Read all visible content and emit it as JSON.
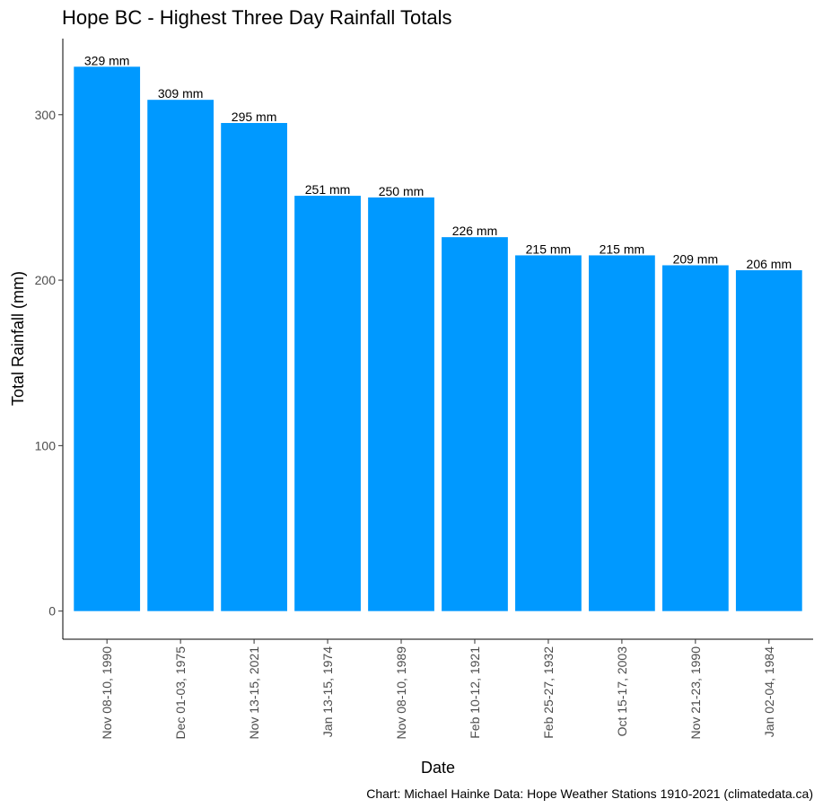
{
  "chart_data": {
    "type": "bar",
    "title": "Hope BC - Highest Three Day Rainfall Totals",
    "xlabel": "Date",
    "ylabel": "Total Rainfall (mm)",
    "caption": "Chart: Michael Hainke  Data: Hope Weather Stations 1910-2021 (climatedata.ca)",
    "categories": [
      "Nov 08-10, 1990",
      "Dec 01-03, 1975",
      "Nov 13-15, 2021",
      "Jan 13-15, 1974",
      "Nov 08-10, 1989",
      "Feb 10-12, 1921",
      "Feb 25-27, 1932",
      "Oct 15-17, 2003",
      "Nov 21-23, 1990",
      "Jan 02-04, 1984"
    ],
    "values": [
      329,
      309,
      295,
      251,
      250,
      226,
      215,
      215,
      209,
      206
    ],
    "data_labels": [
      "329 mm",
      "309 mm",
      "295 mm",
      "251 mm",
      "250 mm",
      "226 mm",
      "215 mm",
      "215 mm",
      "209 mm",
      "206 mm"
    ],
    "yticks": [
      0,
      100,
      200,
      300
    ],
    "ytick_labels": [
      "0",
      "100",
      "200",
      "300"
    ],
    "ylim": [
      -17,
      346
    ],
    "bar_color": "#0099FF",
    "grid": false,
    "legend": "none"
  }
}
